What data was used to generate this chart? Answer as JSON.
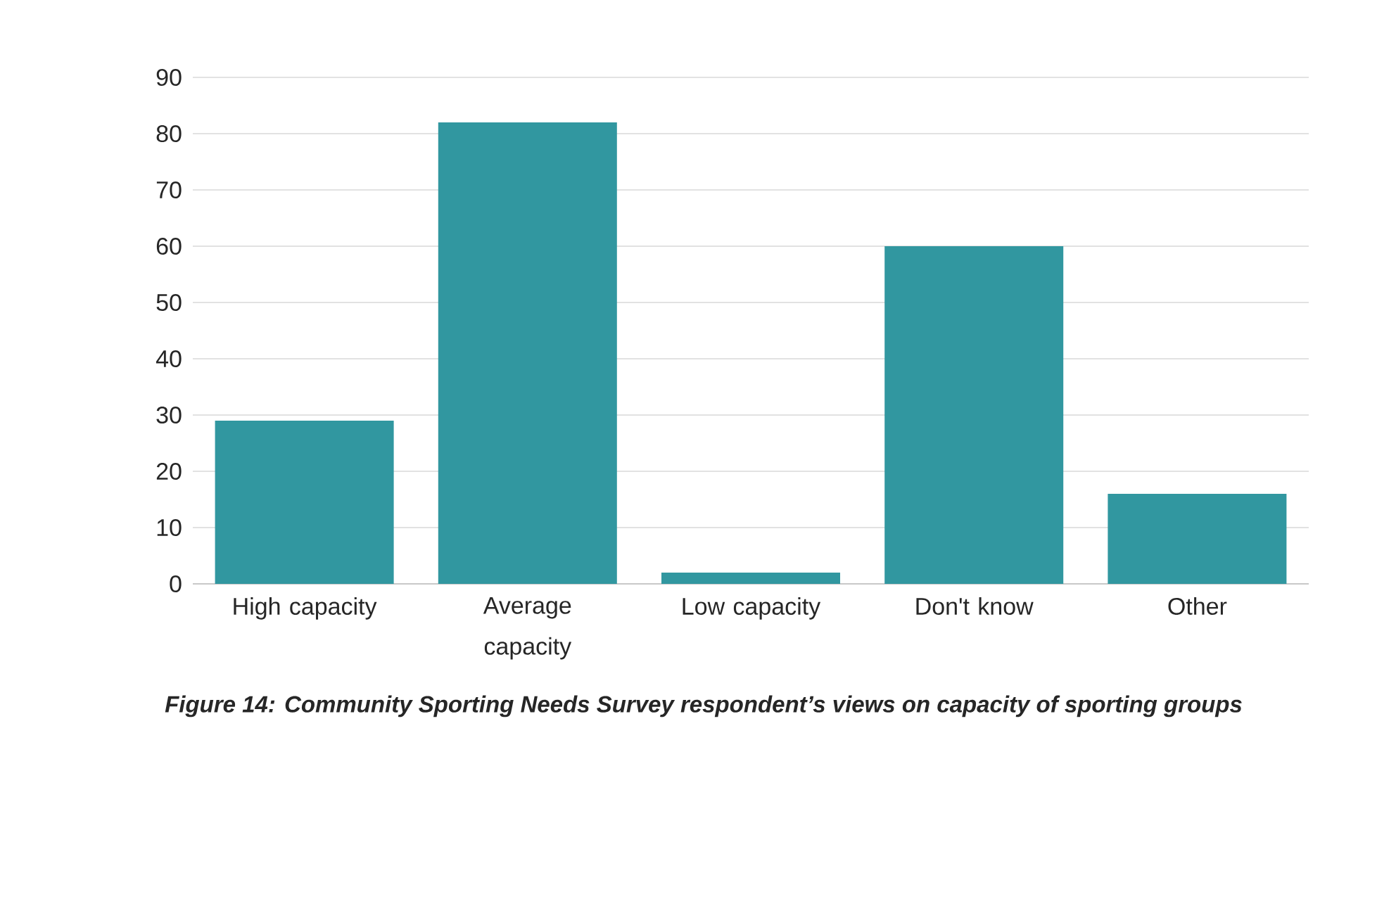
{
  "chart_data": {
    "type": "bar",
    "categories": [
      "High capacity",
      "Average capacity",
      "Low capacity",
      "Don't know",
      "Other"
    ],
    "values": [
      29,
      82,
      2,
      60,
      16
    ],
    "color": "#3197a0",
    "ylim": [
      0,
      90
    ],
    "yticks": [
      0,
      10,
      20,
      30,
      40,
      50,
      60,
      70,
      80,
      90
    ],
    "grid": "y",
    "annotations": [
      "Figure 14: Community Sporting Needs Survey respondent’s views on capacity of sporting groups"
    ]
  }
}
